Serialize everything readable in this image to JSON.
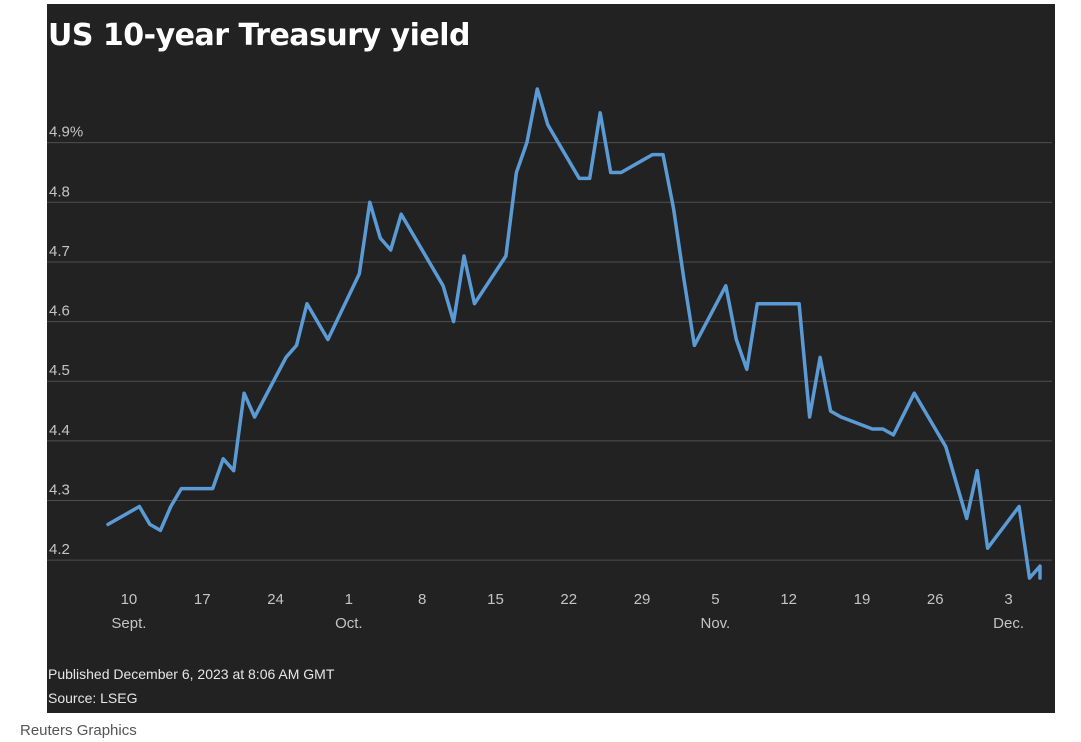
{
  "chart_data": {
    "type": "line",
    "title": "US 10-year Treasury yield",
    "xlabel": "",
    "ylabel": "",
    "line_color": "#5b9bd5",
    "background": "#222222",
    "grid": true,
    "ylim": [
      4.15,
      5.0
    ],
    "y_ticks": [
      {
        "value": 4.2,
        "label": "4.2"
      },
      {
        "value": 4.3,
        "label": "4.3"
      },
      {
        "value": 4.4,
        "label": "4.4"
      },
      {
        "value": 4.5,
        "label": "4.5"
      },
      {
        "value": 4.6,
        "label": "4.6"
      },
      {
        "value": 4.7,
        "label": "4.7"
      },
      {
        "value": 4.8,
        "label": "4.8"
      },
      {
        "value": 4.9,
        "label": "4.9%"
      }
    ],
    "xlim": [
      "2023-09-08",
      "2023-12-06"
    ],
    "x_ticks": [
      {
        "date": "2023-09-10",
        "label": "10",
        "month": "Sept."
      },
      {
        "date": "2023-09-17",
        "label": "17"
      },
      {
        "date": "2023-09-24",
        "label": "24"
      },
      {
        "date": "2023-10-01",
        "label": "1",
        "month": "Oct."
      },
      {
        "date": "2023-10-08",
        "label": "8"
      },
      {
        "date": "2023-10-15",
        "label": "15"
      },
      {
        "date": "2023-10-22",
        "label": "22"
      },
      {
        "date": "2023-10-29",
        "label": "29"
      },
      {
        "date": "2023-11-05",
        "label": "5",
        "month": "Nov."
      },
      {
        "date": "2023-11-12",
        "label": "12"
      },
      {
        "date": "2023-11-19",
        "label": "19"
      },
      {
        "date": "2023-11-26",
        "label": "26"
      },
      {
        "date": "2023-12-03",
        "label": "3",
        "month": "Dec."
      }
    ],
    "series": [
      {
        "values": [
          [
            "2023-09-08",
            4.26
          ],
          [
            "2023-09-11",
            4.29
          ],
          [
            "2023-09-12",
            4.26
          ],
          [
            "2023-09-13",
            4.25
          ],
          [
            "2023-09-14",
            4.29
          ],
          [
            "2023-09-15",
            4.32
          ],
          [
            "2023-09-18",
            4.32
          ],
          [
            "2023-09-19",
            4.37
          ],
          [
            "2023-09-20",
            4.35
          ],
          [
            "2023-09-21",
            4.48
          ],
          [
            "2023-09-22",
            4.44
          ],
          [
            "2023-09-25",
            4.54
          ],
          [
            "2023-09-26",
            4.56
          ],
          [
            "2023-09-27",
            4.63
          ],
          [
            "2023-09-29",
            4.57
          ],
          [
            "2023-10-02",
            4.68
          ],
          [
            "2023-10-03",
            4.8
          ],
          [
            "2023-10-04",
            4.74
          ],
          [
            "2023-10-05",
            4.72
          ],
          [
            "2023-10-06",
            4.78
          ],
          [
            "2023-10-10",
            4.66
          ],
          [
            "2023-10-11",
            4.6
          ],
          [
            "2023-10-12",
            4.71
          ],
          [
            "2023-10-13",
            4.63
          ],
          [
            "2023-10-16",
            4.71
          ],
          [
            "2023-10-17",
            4.85
          ],
          [
            "2023-10-18",
            4.9
          ],
          [
            "2023-10-19",
            4.99
          ],
          [
            "2023-10-20",
            4.93
          ],
          [
            "2023-10-23",
            4.84
          ],
          [
            "2023-10-24",
            4.84
          ],
          [
            "2023-10-25",
            4.95
          ],
          [
            "2023-10-26",
            4.85
          ],
          [
            "2023-10-27",
            4.85
          ],
          [
            "2023-10-30",
            4.88
          ],
          [
            "2023-10-31",
            4.88
          ],
          [
            "2023-11-01",
            4.79
          ],
          [
            "2023-11-02",
            4.67
          ],
          [
            "2023-11-03",
            4.56
          ],
          [
            "2023-11-06",
            4.66
          ],
          [
            "2023-11-07",
            4.57
          ],
          [
            "2023-11-08",
            4.52
          ],
          [
            "2023-11-09",
            4.63
          ],
          [
            "2023-11-10",
            4.63
          ],
          [
            "2023-11-13",
            4.63
          ],
          [
            "2023-11-14",
            4.44
          ],
          [
            "2023-11-15",
            4.54
          ],
          [
            "2023-11-16",
            4.45
          ],
          [
            "2023-11-17",
            4.44
          ],
          [
            "2023-11-20",
            4.42
          ],
          [
            "2023-11-21",
            4.42
          ],
          [
            "2023-11-22",
            4.41
          ],
          [
            "2023-11-24",
            4.48
          ],
          [
            "2023-11-27",
            4.39
          ],
          [
            "2023-11-28",
            4.33
          ],
          [
            "2023-11-29",
            4.27
          ],
          [
            "2023-11-30",
            4.35
          ],
          [
            "2023-12-01",
            4.22
          ],
          [
            "2023-12-04",
            4.29
          ],
          [
            "2023-12-05",
            4.17
          ],
          [
            "2023-12-06",
            4.19
          ],
          [
            "2023-12-06",
            4.17
          ]
        ]
      }
    ]
  },
  "footer": {
    "published": "Published December 6, 2023 at 8:06 AM GMT",
    "source": "Source: LSEG"
  },
  "credit": "Reuters Graphics"
}
